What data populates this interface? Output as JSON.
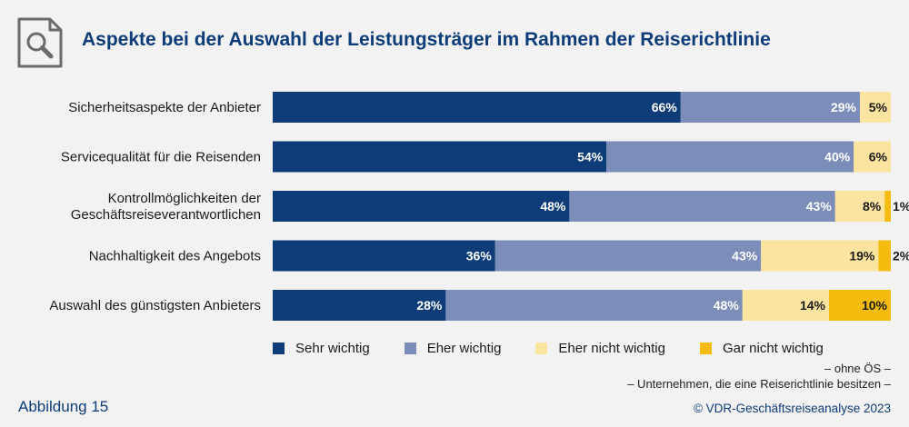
{
  "title": "Aspekte bei der Auswahl der Leistungsträger im Rahmen der Reiserichtlinie",
  "icon": "search-document-icon",
  "chart_data": {
    "type": "bar",
    "orientation": "horizontal",
    "stacked": true,
    "normalized_percent": true,
    "categories": [
      "Sicherheitsaspekte der Anbieter",
      "Servicequalität für die Reisenden",
      "Kontrollmöglichkeiten der|Geschäftsreiseverantwortlichen",
      "Nachhaltigkeit des Angebots",
      "Auswahl des günstigsten Anbieters"
    ],
    "series": [
      {
        "name": "Sehr wichtig",
        "color": "#0d3c78",
        "label_color": "#ffffff",
        "values": [
          66,
          54,
          48,
          36,
          28
        ]
      },
      {
        "name": "Eher wichtig",
        "color": "#7b8db8",
        "label_color": "#ffffff",
        "values": [
          29,
          40,
          43,
          43,
          48
        ]
      },
      {
        "name": "Eher nicht wichtig",
        "color": "#fbe3a0",
        "label_color": "#1a1a1a",
        "values": [
          5,
          6,
          8,
          19,
          14
        ]
      },
      {
        "name": "Gar nicht wichtig",
        "color": "#f4bc0f",
        "label_color": "#1a1a1a",
        "values": [
          0,
          0,
          1,
          2,
          10
        ]
      }
    ],
    "value_suffix": "%",
    "legend_position": "bottom",
    "grid": false
  },
  "notes": [
    "– ohne ÖS –",
    "– Unternehmen, die eine Reiserichtlinie besitzen –"
  ],
  "figure_label": "Abbildung 15",
  "copyright": "© VDR-Geschäftsreiseanalyse 2023"
}
